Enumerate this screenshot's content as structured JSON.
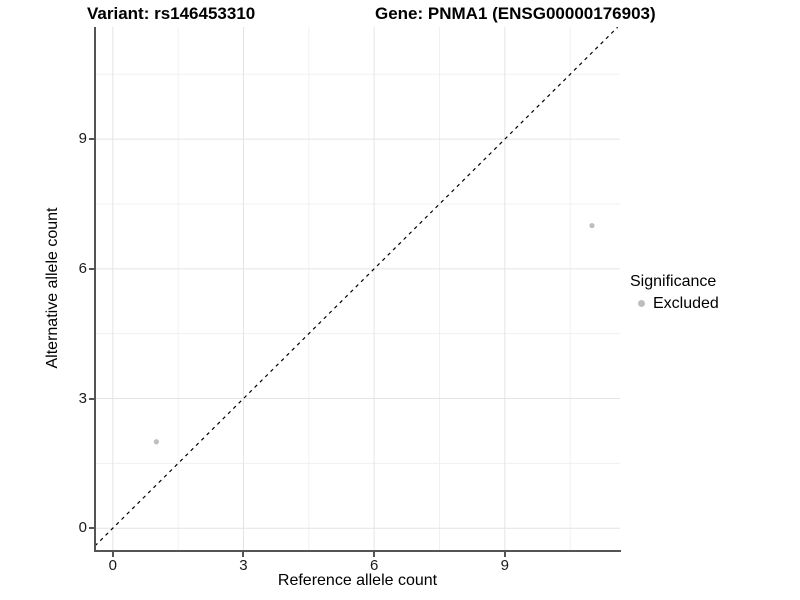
{
  "titles": {
    "variant": "Variant: rs146453310",
    "gene": "Gene: PNMA1 (ENSG00000176903)"
  },
  "axes": {
    "x": {
      "label": "Reference allele count",
      "ticks": [
        "0",
        "3",
        "6",
        "9"
      ]
    },
    "y": {
      "label": "Alternative allele count",
      "ticks": [
        "0",
        "3",
        "6",
        "9"
      ]
    }
  },
  "legend": {
    "title": "Significance",
    "items": [
      {
        "label": "Excluded",
        "color": "#bebebe"
      }
    ]
  },
  "colors": {
    "point_gray": "#bebebe",
    "axis": "#545454",
    "grid_major": "#e4e4e4",
    "grid_minor": "#f0f0f0",
    "reference_line": "#000000"
  },
  "chart_data": {
    "type": "scatter",
    "title": "Variant: rs146453310",
    "subtitle": "Gene: PNMA1 (ENSG00000176903)",
    "xlabel": "Reference allele count",
    "ylabel": "Alternative allele count",
    "xlim": [
      -0.41,
      11.63
    ],
    "ylim": [
      -0.51,
      11.59
    ],
    "x_ticks": [
      0,
      3,
      6,
      9
    ],
    "y_ticks": [
      0,
      3,
      6,
      9
    ],
    "minor_grid_step": 1.5,
    "grid": true,
    "legend_position": "right",
    "series": [
      {
        "name": "Excluded",
        "color": "#bebebe",
        "points": [
          [
            1,
            2
          ],
          [
            11,
            7
          ]
        ]
      }
    ],
    "reference_line": {
      "style": "dashed",
      "color": "#000000",
      "intercept": 0,
      "slope": 1,
      "meaning": "identity line y = x"
    }
  }
}
